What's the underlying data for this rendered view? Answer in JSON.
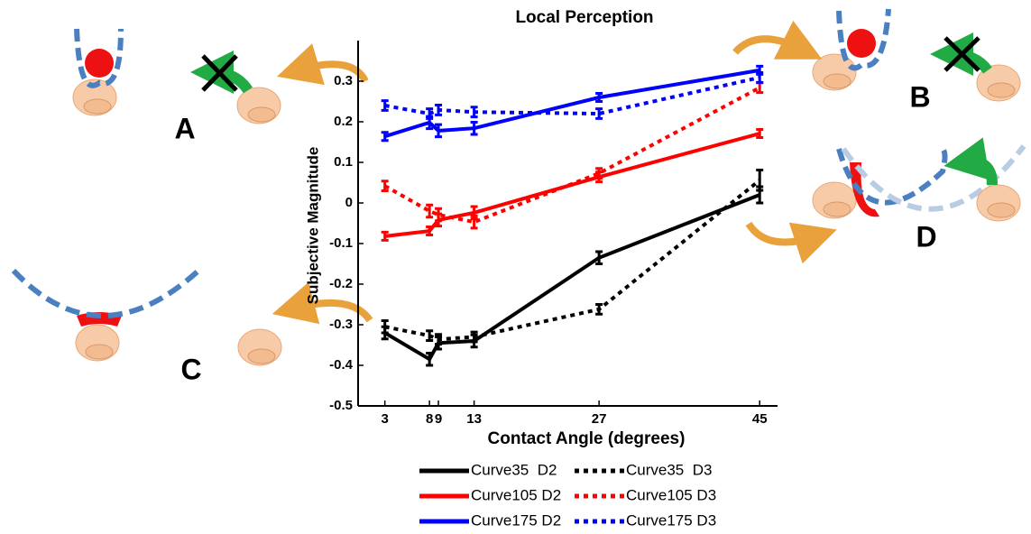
{
  "chart_data": {
    "type": "line",
    "title": "Local Perception",
    "xlabel": "Contact Angle (degrees)",
    "ylabel": "Subjective Magnitude",
    "x": [
      3,
      8,
      9,
      13,
      27,
      45
    ],
    "xlim": [
      0,
      47
    ],
    "xticks": [
      3,
      8,
      9,
      13,
      27,
      45
    ],
    "ylim": [
      -0.5,
      0.4
    ],
    "yticks": [
      -0.5,
      -0.4,
      -0.3,
      -0.2,
      -0.1,
      0,
      0.1,
      0.2,
      0.3
    ],
    "series": [
      {
        "name": "Curve35  D2",
        "color": "#000000",
        "style": "solid",
        "values": [
          -0.32,
          -0.385,
          -0.345,
          -0.34,
          -0.135,
          0.02
        ],
        "errors": [
          0.015,
          0.015,
          0.015,
          0.015,
          0.015,
          0.02
        ]
      },
      {
        "name": "Curve105 D2",
        "color": "#ff0000",
        "style": "solid",
        "values": [
          -0.082,
          -0.069,
          -0.042,
          -0.024,
          0.064,
          0.171
        ],
        "errors": [
          0.01,
          0.01,
          0.015,
          0.015,
          0.012,
          0.01
        ]
      },
      {
        "name": "Curve175 D2",
        "color": "#0000ff",
        "style": "solid",
        "values": [
          0.164,
          0.198,
          0.178,
          0.184,
          0.26,
          0.327
        ],
        "errors": [
          0.01,
          0.015,
          0.015,
          0.015,
          0.01,
          0.01
        ]
      },
      {
        "name": "Curve35  D3",
        "color": "#000000",
        "style": "dotted",
        "values": [
          -0.305,
          -0.327,
          -0.336,
          -0.33,
          -0.262,
          0.056
        ],
        "errors": [
          0.015,
          0.012,
          0.012,
          0.012,
          0.012,
          0.025
        ]
      },
      {
        "name": "Curve105 D3",
        "color": "#ff0000",
        "style": "dotted",
        "values": [
          0.042,
          -0.02,
          -0.029,
          -0.047,
          0.073,
          0.284
        ],
        "errors": [
          0.012,
          0.015,
          0.015,
          0.015,
          0.012,
          0.012
        ]
      },
      {
        "name": "Curve175 D3",
        "color": "#0000ff",
        "style": "dotted",
        "values": [
          0.24,
          0.22,
          0.229,
          0.224,
          0.22,
          0.309
        ],
        "errors": [
          0.012,
          0.012,
          0.012,
          0.012,
          0.012,
          0.012
        ]
      }
    ],
    "annotations": [
      "A",
      "B",
      "C",
      "D"
    ]
  }
}
